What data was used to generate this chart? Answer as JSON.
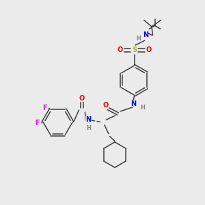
{
  "background_color": "#ebebeb",
  "colors": {
    "carbon": "#3d3d3d",
    "nitrogen": "#0000ff",
    "oxygen": "#ff0000",
    "sulfur": "#b8b800",
    "fluorine": "#ee00ee",
    "hydrogen_label": "#808080",
    "bond": "#3d3d3d"
  },
  "layout": {
    "xlim": [
      0,
      10
    ],
    "ylim": [
      0,
      10
    ]
  }
}
